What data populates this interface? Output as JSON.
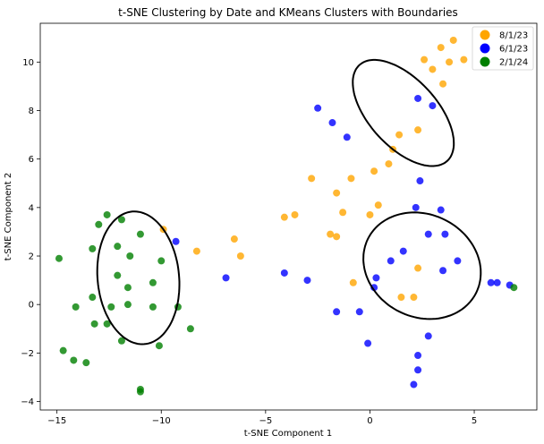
{
  "chart_data": {
    "type": "scatter",
    "title": "t-SNE Clustering by Date and KMeans Clusters with Boundaries",
    "xlabel": "t-SNE Component 1",
    "ylabel": "t-SNE Component 2",
    "xlim": [
      -15.8,
      8
    ],
    "ylim": [
      -4.35,
      11.6
    ],
    "x_ticks": [
      -15,
      -10,
      -5,
      0,
      5
    ],
    "y_ticks": [
      -4,
      -2,
      0,
      2,
      4,
      6,
      8,
      10
    ],
    "tick_labels_x": [
      "−15",
      "−10",
      "−5",
      "0",
      "5"
    ],
    "tick_labels_y": [
      "−4",
      "−2",
      "0",
      "2",
      "4",
      "6",
      "8",
      "10"
    ],
    "grid": false,
    "legend_position": "top-right",
    "series": [
      {
        "name": "8/1/23",
        "color": "#FFA500",
        "points": [
          [
            4.5,
            10.1
          ],
          [
            4.0,
            10.9
          ],
          [
            3.4,
            10.6
          ],
          [
            2.6,
            10.1
          ],
          [
            3.0,
            9.7
          ],
          [
            3.8,
            10.0
          ],
          [
            3.5,
            9.1
          ],
          [
            2.3,
            7.2
          ],
          [
            1.4,
            7.0
          ],
          [
            1.1,
            6.4
          ],
          [
            0.9,
            5.8
          ],
          [
            0.2,
            5.5
          ],
          [
            -0.9,
            5.2
          ],
          [
            -2.8,
            5.2
          ],
          [
            -1.6,
            4.6
          ],
          [
            -1.3,
            3.8
          ],
          [
            0.4,
            4.1
          ],
          [
            0.0,
            3.7
          ],
          [
            -3.6,
            3.7
          ],
          [
            -4.1,
            3.6
          ],
          [
            -1.9,
            2.9
          ],
          [
            -1.6,
            2.8
          ],
          [
            -9.9,
            3.1
          ],
          [
            -6.5,
            2.7
          ],
          [
            -6.2,
            2.0
          ],
          [
            -8.3,
            2.2
          ],
          [
            2.3,
            1.5
          ],
          [
            -0.8,
            0.9
          ],
          [
            1.5,
            0.3
          ],
          [
            2.1,
            0.3
          ]
        ]
      },
      {
        "name": "6/1/23",
        "color": "#0000FF",
        "points": [
          [
            -2.5,
            8.1
          ],
          [
            -1.8,
            7.5
          ],
          [
            -1.1,
            6.9
          ],
          [
            2.3,
            8.5
          ],
          [
            3.0,
            8.2
          ],
          [
            2.4,
            5.1
          ],
          [
            2.2,
            4.0
          ],
          [
            3.4,
            3.9
          ],
          [
            2.8,
            2.9
          ],
          [
            3.6,
            2.9
          ],
          [
            1.6,
            2.2
          ],
          [
            1.0,
            1.8
          ],
          [
            4.2,
            1.8
          ],
          [
            3.5,
            1.4
          ],
          [
            -4.1,
            1.3
          ],
          [
            0.3,
            1.1
          ],
          [
            0.2,
            0.7
          ],
          [
            -3.0,
            1.0
          ],
          [
            -6.9,
            1.1
          ],
          [
            5.8,
            0.9
          ],
          [
            6.1,
            0.9
          ],
          [
            6.7,
            0.8
          ],
          [
            -1.6,
            -0.3
          ],
          [
            -0.5,
            -0.3
          ],
          [
            2.8,
            -1.3
          ],
          [
            -0.1,
            -1.6
          ],
          [
            2.3,
            -2.1
          ],
          [
            2.3,
            -2.7
          ],
          [
            2.1,
            -3.3
          ],
          [
            -9.3,
            2.6
          ]
        ]
      },
      {
        "name": "2/1/24",
        "color": "#008000",
        "points": [
          [
            -12.6,
            3.7
          ],
          [
            -11.9,
            3.5
          ],
          [
            -13.0,
            3.3
          ],
          [
            -11.0,
            2.9
          ],
          [
            -13.3,
            2.3
          ],
          [
            -12.1,
            2.4
          ],
          [
            -11.5,
            2.0
          ],
          [
            -14.9,
            1.9
          ],
          [
            -10.0,
            1.8
          ],
          [
            -12.1,
            1.2
          ],
          [
            -10.4,
            0.9
          ],
          [
            -11.6,
            0.7
          ],
          [
            -13.3,
            0.3
          ],
          [
            -11.6,
            0.0
          ],
          [
            -10.4,
            -0.1
          ],
          [
            -9.2,
            -0.1
          ],
          [
            -14.1,
            -0.1
          ],
          [
            -12.4,
            -0.1
          ],
          [
            -13.2,
            -0.8
          ],
          [
            -12.6,
            -0.8
          ],
          [
            -8.6,
            -1.0
          ],
          [
            -11.9,
            -1.5
          ],
          [
            -10.1,
            -1.7
          ],
          [
            -14.7,
            -1.9
          ],
          [
            -14.2,
            -2.3
          ],
          [
            -13.6,
            -2.4
          ],
          [
            -11.0,
            -3.5
          ],
          [
            -11.0,
            -3.6
          ],
          [
            6.9,
            0.7
          ]
        ]
      }
    ],
    "boundaries": [
      {
        "cx": -11.1,
        "cy": 1.1,
        "rx": 1.95,
        "ry": 2.75,
        "angle_deg": 8
      },
      {
        "cx": 1.6,
        "cy": 7.9,
        "rx": 1.5,
        "ry": 2.9,
        "angle_deg": 50
      },
      {
        "cx": 2.5,
        "cy": 1.6,
        "rx": 2.85,
        "ry": 2.15,
        "angle_deg": -14
      }
    ]
  }
}
